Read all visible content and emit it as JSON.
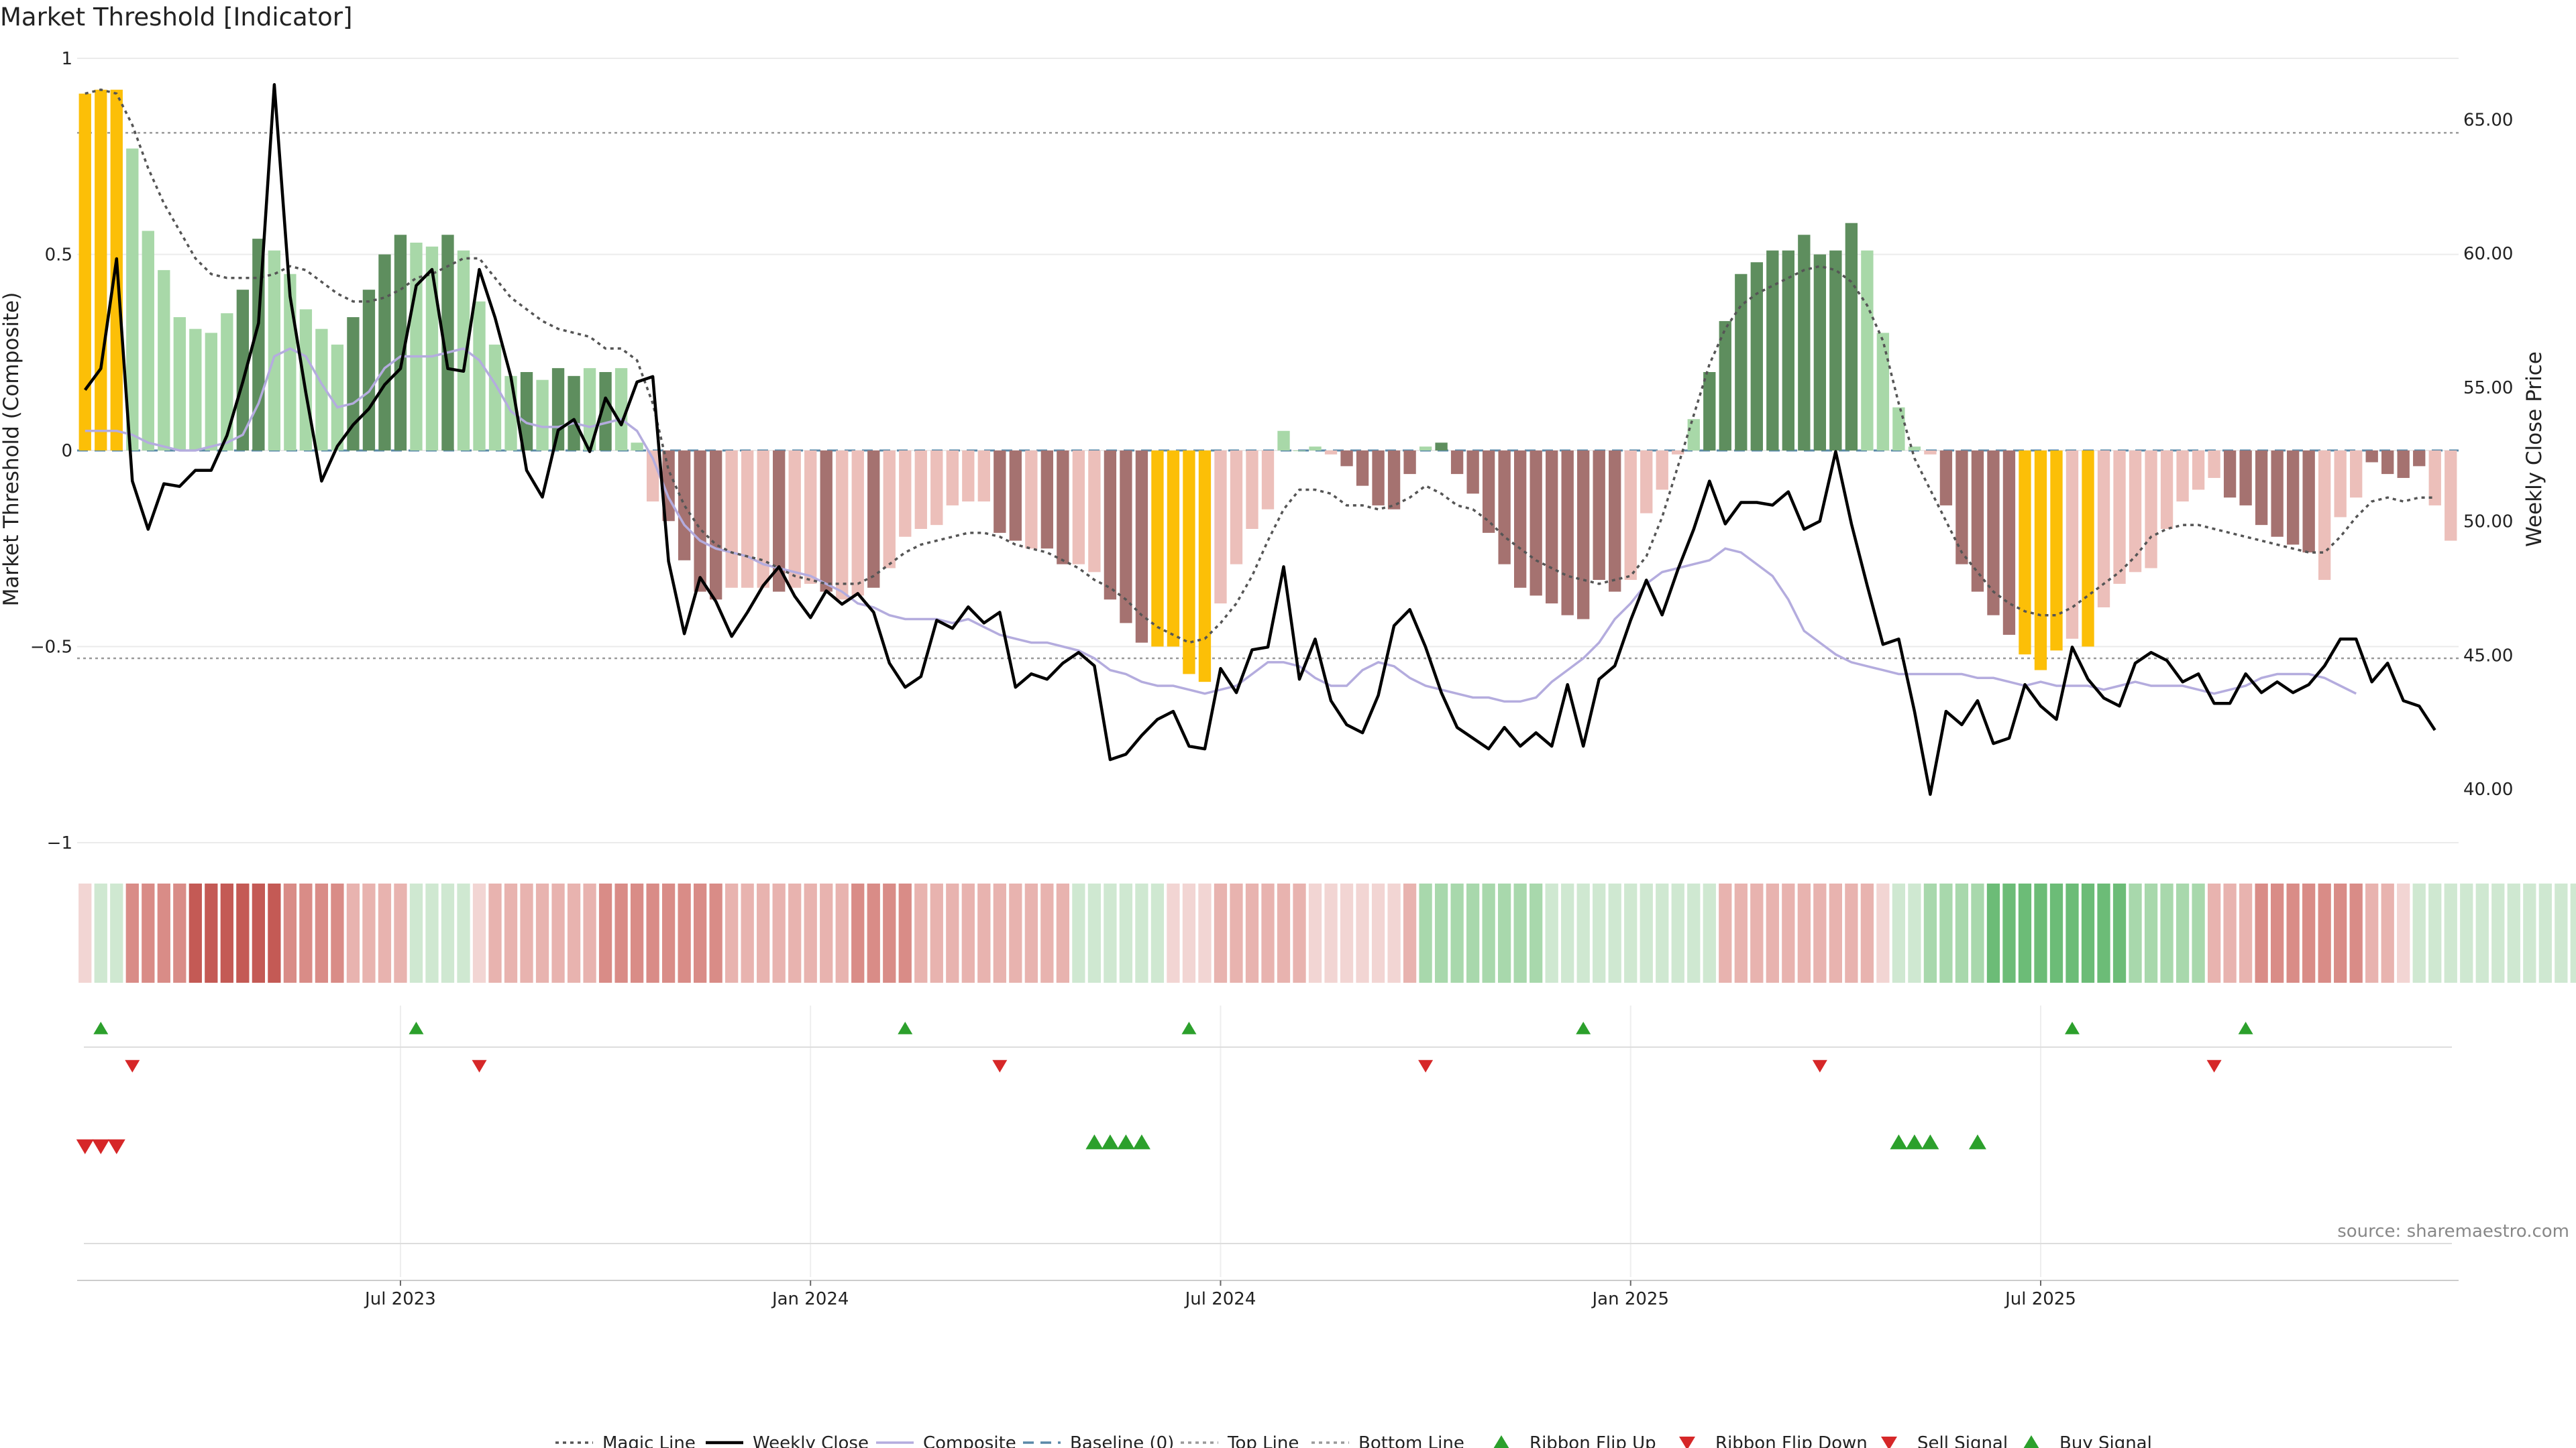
{
  "chart_data": {
    "type": "bar",
    "title": "Market Threshold [Indicator]",
    "ylabel": "Market Threshold (Composite)",
    "y2label": "Weekly Close Price",
    "ylim": [
      -1,
      1
    ],
    "y2lim": [
      37.5,
      67.5
    ],
    "yticks": [
      {
        "v": 1,
        "label": "1"
      },
      {
        "v": 0.5,
        "label": "0.5"
      },
      {
        "v": 0,
        "label": "0"
      },
      {
        "v": -0.5,
        "label": "−0.5"
      },
      {
        "v": -1,
        "label": "−1"
      }
    ],
    "y2ticks": [
      "40.00",
      "45.00",
      "50.00",
      "55.00",
      "60.00",
      "65.00"
    ],
    "x_axis_ticks": [
      {
        "label": "Jul 2023",
        "week": 20
      },
      {
        "label": "Jan 2024",
        "week": 46
      },
      {
        "label": "Jul 2024",
        "week": 72
      },
      {
        "label": "Jan 2025",
        "week": 98
      },
      {
        "label": "Jul 2025",
        "week": 124
      }
    ],
    "top_line": 0.81,
    "bottom_line": -0.53,
    "grid": true,
    "colors": {
      "extreme": "#fcbf07",
      "pos_strong": "#5e8e5e",
      "pos_weak": "#a8d8a8",
      "neg_strong": "#a57270",
      "neg_weak": "#ecbfba",
      "close": "#000000",
      "composite": "#b4acde",
      "magic": "#555555",
      "baseline": "#5a89a8",
      "threshold": "#999999",
      "buy": "#2ca02c",
      "sell": "#d62728"
    },
    "histogram": [
      0.91,
      0.92,
      0.92,
      0.77,
      0.56,
      0.46,
      0.34,
      0.31,
      0.3,
      0.35,
      0.41,
      0.54,
      0.51,
      0.45,
      0.36,
      0.31,
      0.27,
      0.34,
      0.41,
      0.5,
      0.55,
      0.53,
      0.52,
      0.55,
      0.51,
      0.38,
      0.27,
      0.19,
      0.2,
      0.18,
      0.21,
      0.19,
      0.21,
      0.2,
      0.21,
      0.02,
      -0.13,
      -0.18,
      -0.28,
      -0.36,
      -0.38,
      -0.35,
      -0.35,
      -0.35,
      -0.36,
      -0.35,
      -0.34,
      -0.36,
      -0.38,
      -0.37,
      -0.35,
      -0.3,
      -0.22,
      -0.2,
      -0.19,
      -0.14,
      -0.13,
      -0.13,
      -0.21,
      -0.23,
      -0.25,
      -0.25,
      -0.29,
      -0.29,
      -0.31,
      -0.38,
      -0.44,
      -0.49,
      -0.5,
      -0.5,
      -0.57,
      -0.59,
      -0.39,
      -0.29,
      -0.2,
      -0.15,
      0.05,
      0,
      0.01,
      -0.01,
      -0.04,
      -0.09,
      -0.14,
      -0.15,
      -0.06,
      0.01,
      0.02,
      -0.06,
      -0.11,
      -0.21,
      -0.29,
      -0.35,
      -0.37,
      -0.39,
      -0.42,
      -0.43,
      -0.33,
      -0.36,
      -0.33,
      -0.16,
      -0.1,
      -0.01,
      0.08,
      0.2,
      0.33,
      0.45,
      0.48,
      0.51,
      0.51,
      0.55,
      0.5,
      0.51,
      0.58,
      0.51,
      0.3,
      0.11,
      0.01,
      -0.01,
      -0.14,
      -0.29,
      -0.36,
      -0.42,
      -0.47,
      -0.52,
      -0.56,
      -0.51,
      -0.48,
      -0.5,
      -0.4,
      -0.34,
      -0.31,
      -0.3,
      -0.2,
      -0.13,
      -0.1,
      -0.07,
      -0.12,
      -0.14,
      -0.19,
      -0.22,
      -0.24,
      -0.26,
      -0.33,
      -0.17,
      -0.12,
      -0.03,
      -0.06,
      -0.07,
      -0.04,
      -0.14,
      -0.23
    ],
    "histogram_tone": [
      "x",
      "x",
      "x",
      "w",
      "w",
      "w",
      "w",
      "w",
      "w",
      "w",
      "s",
      "s",
      "w",
      "w",
      "w",
      "w",
      "w",
      "s",
      "s",
      "s",
      "s",
      "w",
      "w",
      "s",
      "w",
      "w",
      "w",
      "w",
      "s",
      "w",
      "s",
      "s",
      "w",
      "s",
      "w",
      "w",
      "w",
      "s",
      "s",
      "s",
      "s",
      "w",
      "w",
      "w",
      "s",
      "w",
      "w",
      "s",
      "w",
      "w",
      "s",
      "w",
      "w",
      "w",
      "w",
      "w",
      "w",
      "w",
      "s",
      "s",
      "w",
      "s",
      "s",
      "w",
      "w",
      "s",
      "s",
      "s",
      "x",
      "x",
      "x",
      "x",
      "w",
      "w",
      "w",
      "w",
      "w",
      "w",
      "w",
      "w",
      "s",
      "s",
      "s",
      "s",
      "s",
      "w",
      "s",
      "s",
      "s",
      "s",
      "s",
      "s",
      "s",
      "s",
      "s",
      "s",
      "s",
      "s",
      "w",
      "w",
      "w",
      "w",
      "w",
      "s",
      "s",
      "s",
      "s",
      "s",
      "s",
      "s",
      "s",
      "s",
      "s",
      "w",
      "w",
      "w",
      "w",
      "w",
      "s",
      "s",
      "s",
      "s",
      "s",
      "x",
      "x",
      "x",
      "w",
      "x",
      "w",
      "w",
      "w",
      "w",
      "w",
      "w",
      "w",
      "w",
      "s",
      "s",
      "s",
      "s",
      "s",
      "s",
      "w",
      "w",
      "w",
      "s",
      "s",
      "s",
      "s"
    ],
    "close": [
      54.9,
      55.7,
      59.8,
      51.5,
      49.7,
      51.4,
      51.3,
      51.9,
      51.9,
      53.2,
      55.2,
      57.4,
      66.3,
      58.4,
      54.8,
      51.5,
      52.8,
      53.6,
      54.2,
      55.1,
      55.7,
      58.8,
      59.4,
      55.7,
      55.6,
      59.4,
      57.6,
      55.4,
      51.9,
      50.9,
      53.4,
      53.8,
      52.6,
      54.6,
      53.6,
      55.2,
      55.4,
      48.5,
      45.8,
      47.9,
      47.0,
      45.7,
      46.6,
      47.6,
      48.3,
      47.2,
      46.4,
      47.4,
      46.9,
      47.3,
      46.6,
      44.7,
      43.8,
      44.2,
      46.3,
      46.0,
      46.8,
      46.2,
      46.6,
      43.8,
      44.3,
      44.1,
      44.7,
      45.1,
      44.6,
      41.1,
      41.3,
      42.0,
      42.6,
      42.9,
      41.6,
      41.5,
      44.5,
      43.6,
      45.2,
      45.3,
      48.3,
      44.1,
      45.6,
      43.3,
      42.4,
      42.1,
      43.5,
      46.1,
      46.7,
      45.3,
      43.6,
      42.3,
      41.9,
      41.5,
      42.3,
      41.6,
      42.1,
      41.6,
      43.9,
      41.6,
      44.1,
      44.6,
      46.3,
      47.8,
      46.5,
      48.2,
      49.7,
      51.5,
      49.9,
      50.7,
      50.7,
      50.6,
      51.1,
      49.7,
      50.0,
      52.6,
      49.9,
      47.6,
      45.4,
      45.6,
      42.9,
      39.8,
      42.9,
      42.4,
      43.3,
      41.7,
      41.9,
      43.9,
      43.1,
      42.6,
      45.3,
      44.1,
      43.4,
      43.1,
      44.7,
      45.1,
      44.8,
      44.0,
      44.3,
      43.2,
      43.2,
      44.3,
      43.6,
      44.0,
      43.6,
      43.9,
      44.6,
      45.6,
      45.6,
      44.0,
      44.7,
      43.3,
      43.1,
      42.2
    ],
    "composite": [
      0.05,
      0.05,
      0.05,
      0.04,
      0.02,
      0.01,
      0.0,
      0.0,
      0.01,
      0.02,
      0.04,
      0.12,
      0.24,
      0.26,
      0.24,
      0.17,
      0.11,
      0.12,
      0.15,
      0.21,
      0.24,
      0.24,
      0.24,
      0.25,
      0.26,
      0.23,
      0.17,
      0.1,
      0.07,
      0.06,
      0.06,
      0.07,
      0.06,
      0.07,
      0.08,
      0.05,
      -0.02,
      -0.12,
      -0.19,
      -0.23,
      -0.25,
      -0.26,
      -0.27,
      -0.29,
      -0.3,
      -0.31,
      -0.32,
      -0.34,
      -0.36,
      -0.39,
      -0.4,
      -0.42,
      -0.43,
      -0.43,
      -0.43,
      -0.44,
      -0.43,
      -0.45,
      -0.47,
      -0.48,
      -0.49,
      -0.49,
      -0.5,
      -0.51,
      -0.53,
      -0.56,
      -0.57,
      -0.59,
      -0.6,
      -0.6,
      -0.61,
      -0.62,
      -0.61,
      -0.6,
      -0.57,
      -0.54,
      -0.54,
      -0.55,
      -0.58,
      -0.6,
      -0.6,
      -0.56,
      -0.54,
      -0.55,
      -0.58,
      -0.6,
      -0.61,
      -0.62,
      -0.63,
      -0.63,
      -0.64,
      -0.64,
      -0.63,
      -0.59,
      -0.56,
      -0.53,
      -0.49,
      -0.43,
      -0.39,
      -0.34,
      -0.31,
      -0.3,
      -0.29,
      -0.28,
      -0.25,
      -0.26,
      -0.29,
      -0.32,
      -0.38,
      -0.46,
      -0.49,
      -0.52,
      -0.54,
      -0.55,
      -0.56,
      -0.57,
      -0.57,
      -0.57,
      -0.57,
      -0.57,
      -0.58,
      -0.58,
      -0.59,
      -0.6,
      -0.59,
      -0.6,
      -0.6,
      -0.6,
      -0.61,
      -0.6,
      -0.59,
      -0.6,
      -0.6,
      -0.6,
      -0.61,
      -0.62,
      -0.61,
      -0.6,
      -0.58,
      -0.57,
      -0.57,
      -0.57,
      -0.58,
      -0.6,
      -0.62
    ],
    "magic": [
      0.91,
      0.92,
      0.91,
      0.83,
      0.72,
      0.63,
      0.56,
      0.49,
      0.45,
      0.44,
      0.44,
      0.44,
      0.45,
      0.47,
      0.46,
      0.43,
      0.4,
      0.38,
      0.38,
      0.39,
      0.41,
      0.44,
      0.45,
      0.47,
      0.49,
      0.49,
      0.44,
      0.39,
      0.36,
      0.33,
      0.31,
      0.3,
      0.29,
      0.26,
      0.26,
      0.23,
      0.12,
      -0.05,
      -0.14,
      -0.2,
      -0.24,
      -0.26,
      -0.27,
      -0.28,
      -0.3,
      -0.32,
      -0.33,
      -0.34,
      -0.34,
      -0.34,
      -0.32,
      -0.29,
      -0.26,
      -0.24,
      -0.23,
      -0.22,
      -0.21,
      -0.21,
      -0.22,
      -0.24,
      -0.25,
      -0.26,
      -0.28,
      -0.3,
      -0.33,
      -0.35,
      -0.38,
      -0.42,
      -0.45,
      -0.47,
      -0.49,
      -0.48,
      -0.44,
      -0.39,
      -0.32,
      -0.23,
      -0.15,
      -0.1,
      -0.1,
      -0.11,
      -0.14,
      -0.14,
      -0.15,
      -0.14,
      -0.12,
      -0.09,
      -0.11,
      -0.14,
      -0.15,
      -0.18,
      -0.22,
      -0.25,
      -0.28,
      -0.3,
      -0.32,
      -0.33,
      -0.34,
      -0.33,
      -0.32,
      -0.27,
      -0.17,
      -0.04,
      0.09,
      0.22,
      0.31,
      0.37,
      0.4,
      0.42,
      0.44,
      0.46,
      0.47,
      0.46,
      0.43,
      0.37,
      0.28,
      0.12,
      -0.02,
      -0.1,
      -0.18,
      -0.26,
      -0.31,
      -0.36,
      -0.39,
      -0.41,
      -0.42,
      -0.42,
      -0.4,
      -0.37,
      -0.34,
      -0.31,
      -0.27,
      -0.22,
      -0.2,
      -0.19,
      -0.19,
      -0.2,
      -0.21,
      -0.22,
      -0.23,
      -0.24,
      -0.25,
      -0.26,
      -0.26,
      -0.22,
      -0.17,
      -0.13,
      -0.12,
      -0.13,
      -0.12,
      -0.12
    ],
    "ribbon_levels": [
      -1,
      1,
      1,
      -3,
      -3,
      -3,
      -3,
      -4,
      -4,
      -5,
      -5,
      -4,
      -4,
      -3,
      -3,
      -3,
      -3,
      -2,
      -2,
      -2,
      -2,
      1,
      1,
      1,
      1,
      -1,
      -2,
      -2,
      -2,
      -2,
      -2,
      -2,
      -2,
      -3,
      -3,
      -3,
      -3,
      -3,
      -3,
      -3,
      -3,
      -2,
      -2,
      -2,
      -2,
      -2,
      -2,
      -2,
      -2,
      -3,
      -3,
      -3,
      -3,
      -2,
      -2,
      -2,
      -2,
      -2,
      -2,
      -2,
      -2,
      -2,
      -2,
      1,
      1,
      1,
      1,
      1,
      1,
      -1,
      -1,
      -1,
      -2,
      -2,
      -2,
      -2,
      -2,
      -2,
      -1,
      -1,
      -1,
      -1,
      -1,
      -1,
      -2,
      2,
      2,
      2,
      2,
      2,
      2,
      2,
      2,
      1,
      1,
      1,
      1,
      1,
      1,
      1,
      1,
      1,
      1,
      1,
      -2,
      -2,
      -2,
      -2,
      -2,
      -2,
      -2,
      -2,
      -2,
      -2,
      -1,
      1,
      1,
      2,
      2,
      2,
      2,
      3,
      3,
      3,
      3,
      3,
      3,
      3,
      3,
      3,
      2,
      2,
      2,
      2,
      2,
      -2,
      -2,
      -2,
      -3,
      -3,
      -3,
      -3,
      -3,
      -3,
      -3,
      -2,
      -2,
      -1,
      1,
      1,
      1,
      1,
      1,
      1,
      1,
      1,
      1,
      1,
      1,
      -1,
      1,
      1,
      1,
      1,
      1,
      1,
      1
    ],
    "ribbon_flip_up_weeks": [
      1,
      21,
      52,
      70,
      95,
      126,
      137
    ],
    "ribbon_flip_down_weeks": [
      3,
      25,
      58,
      85,
      110,
      135
    ],
    "sell_signal_weeks": [
      0,
      1,
      2
    ],
    "buy_signal_weeks": [
      64,
      65,
      66,
      67,
      115,
      116,
      117,
      120
    ],
    "source": "source: sharemaestro.com",
    "legend": [
      {
        "label": "Magic Line",
        "kind": "dotted-line",
        "color": "#555555"
      },
      {
        "label": "Weekly Close",
        "kind": "line",
        "color": "#000000"
      },
      {
        "label": "Composite",
        "kind": "line",
        "color": "#b4acde"
      },
      {
        "label": "Baseline (0)",
        "kind": "dashed-line",
        "color": "#5a89a8"
      },
      {
        "label": "Top Line",
        "kind": "dotted-line",
        "color": "#999999"
      },
      {
        "label": "Bottom Line",
        "kind": "dotted-line",
        "color": "#999999"
      },
      {
        "label": "Ribbon Flip Up",
        "kind": "triangle-up",
        "color": "#2ca02c"
      },
      {
        "label": "Ribbon Flip Down",
        "kind": "triangle-down",
        "color": "#d62728"
      },
      {
        "label": "Sell Signal",
        "kind": "triangle-down",
        "color": "#d62728"
      },
      {
        "label": "Buy Signal",
        "kind": "triangle-up",
        "color": "#2ca02c"
      }
    ]
  }
}
